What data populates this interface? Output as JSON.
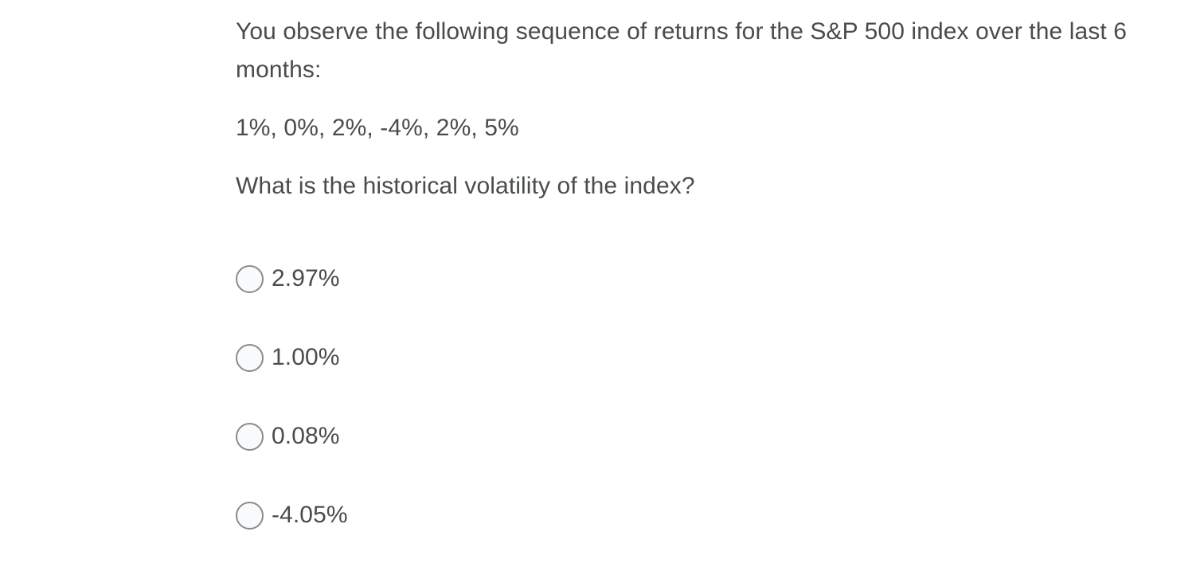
{
  "question": {
    "text_paragraphs": {
      "intro": "You observe the following sequence of returns for the S&P 500 index over the last 6 months:",
      "sequence": "1%, 0%, 2%, -4%, 2%, 5%",
      "prompt": "What is the historical volatility of the index?"
    },
    "options": [
      {
        "label": "2.97%",
        "selected": false
      },
      {
        "label": "1.00%",
        "selected": false
      },
      {
        "label": "0.08%",
        "selected": false
      },
      {
        "label": "-4.05%",
        "selected": false
      }
    ]
  },
  "colors": {
    "page_background": "#ffffff",
    "text": "#494c4e",
    "radio_border": "#888b8e",
    "radio_fill": "#f9fafb"
  }
}
